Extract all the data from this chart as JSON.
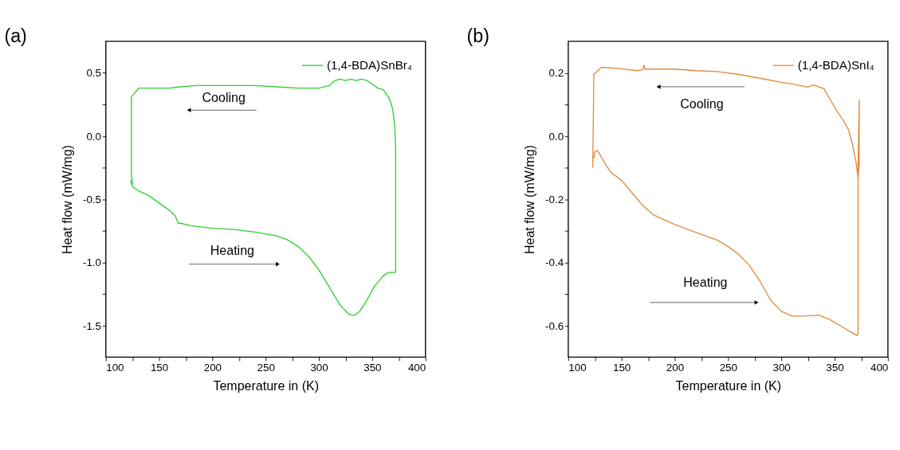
{
  "chart_data": [
    {
      "type": "line",
      "title": "(a)",
      "xlabel": "Temperature in (K)",
      "ylabel": "Heat flow (mW/mg)",
      "legend": "top right",
      "xlim": [
        100,
        400
      ],
      "ylim": [
        -1.75,
        0.75
      ],
      "xticks": [
        100,
        {
          "value": 125,
          "label": null
        },
        150,
        {
          "value": 175,
          "label": null
        },
        200,
        {
          "value": 225,
          "label": null
        },
        250,
        {
          "value": 275,
          "label": null
        },
        300,
        {
          "value": 325,
          "label": null
        },
        350,
        {
          "value": 375,
          "label": null
        },
        400
      ],
      "yticks": [
        {
          "value": -1.5,
          "label": "-1.5"
        },
        {
          "value": -1.25,
          "label": null
        },
        {
          "value": -1,
          "label": "-1.0"
        },
        {
          "value": -0.75,
          "label": null
        },
        {
          "value": -0.5,
          "label": "-0.5"
        },
        {
          "value": -0.25,
          "label": null
        },
        {
          "value": 0,
          "label": "0.0"
        },
        {
          "value": 0.25,
          "label": null
        },
        0.5
      ],
      "annotations": [
        "Cooling",
        "Heating"
      ],
      "series": [
        {
          "name": "(1,4-BDA)SnBr₄",
          "color": "#33cc33",
          "x": [
            123,
            125,
            130,
            140,
            150,
            160,
            165,
            168,
            170,
            180,
            200,
            220,
            240,
            260,
            270,
            280,
            290,
            300,
            310,
            320,
            328,
            333,
            338,
            345,
            352,
            360,
            365,
            372,
            372,
            372,
            371,
            369,
            366,
            360,
            355,
            352,
            345,
            340,
            335,
            330,
            325,
            320,
            315,
            310,
            300,
            280,
            260,
            240,
            220,
            200,
            185,
            170,
            160,
            140,
            131,
            124,
            124,
            125
          ],
          "values": [
            -0.35,
            -0.4,
            -0.43,
            -0.47,
            -0.53,
            -0.59,
            -0.63,
            -0.69,
            -0.69,
            -0.71,
            -0.73,
            -0.74,
            -0.76,
            -0.79,
            -0.82,
            -0.87,
            -0.95,
            -1.06,
            -1.2,
            -1.34,
            -1.41,
            -1.42,
            -1.39,
            -1.3,
            -1.19,
            -1.11,
            -1.08,
            -1.08,
            -0.55,
            -0.1,
            0.1,
            0.22,
            0.3,
            0.37,
            0.38,
            0.4,
            0.44,
            0.45,
            0.44,
            0.45,
            0.44,
            0.45,
            0.44,
            0.4,
            0.38,
            0.38,
            0.39,
            0.4,
            0.4,
            0.4,
            0.4,
            0.39,
            0.38,
            0.38,
            0.38,
            0.31,
            -0.3,
            -0.38
          ]
        }
      ]
    },
    {
      "type": "line",
      "title": "(b)",
      "xlabel": "Temperature in (K)",
      "ylabel": "Heat flow (mW/mg)",
      "legend": "top right",
      "xlim": [
        100,
        400
      ],
      "ylim": [
        -0.7,
        0.3
      ],
      "xticks": [
        100,
        {
          "value": 125,
          "label": null
        },
        150,
        {
          "value": 175,
          "label": null
        },
        200,
        {
          "value": 225,
          "label": null
        },
        250,
        {
          "value": 275,
          "label": null
        },
        300,
        {
          "value": 325,
          "label": null
        },
        350,
        {
          "value": 375,
          "label": null
        },
        400
      ],
      "yticks": [
        {
          "value": -0.6,
          "label": "-0.6"
        },
        {
          "value": -0.5,
          "label": null
        },
        {
          "value": -0.4,
          "label": "-0.4"
        },
        {
          "value": -0.3,
          "label": null
        },
        {
          "value": -0.2,
          "label": "-0.2"
        },
        {
          "value": -0.1,
          "label": null
        },
        {
          "value": 0,
          "label": "0.0"
        },
        {
          "value": 0.1,
          "label": null
        },
        0.2
      ],
      "annotations": [
        "Cooling",
        "Heating"
      ],
      "series": [
        {
          "name": "(1,4-BDA)SnI₄",
          "color": "#e08a3c",
          "x": [
            124,
            125,
            127,
            130,
            135,
            140,
            150,
            160,
            170,
            180,
            200,
            220,
            240,
            250,
            260,
            270,
            280,
            290,
            300,
            310,
            320,
            335,
            345,
            355,
            365,
            371,
            372,
            372,
            373,
            373,
            372,
            370,
            367,
            363,
            358,
            352,
            345,
            340,
            330,
            325,
            310,
            300,
            280,
            260,
            240,
            220,
            200,
            185,
            172,
            171,
            170,
            165,
            150,
            135,
            131,
            124,
            123
          ],
          "values": [
            -0.07,
            -0.05,
            -0.045,
            -0.06,
            -0.09,
            -0.115,
            -0.14,
            -0.18,
            -0.22,
            -0.25,
            -0.28,
            -0.305,
            -0.33,
            -0.35,
            -0.375,
            -0.41,
            -0.46,
            -0.52,
            -0.555,
            -0.57,
            -0.57,
            -0.567,
            -0.58,
            -0.6,
            -0.62,
            -0.632,
            -0.625,
            -0.1,
            0.115,
            -0.09,
            -0.135,
            -0.08,
            -0.03,
            0.02,
            0.05,
            0.08,
            0.12,
            0.15,
            0.162,
            0.155,
            0.165,
            0.17,
            0.183,
            0.195,
            0.204,
            0.207,
            0.212,
            0.212,
            0.212,
            0.225,
            0.21,
            0.207,
            0.213,
            0.217,
            0.217,
            0.195,
            -0.1
          ]
        }
      ]
    }
  ]
}
